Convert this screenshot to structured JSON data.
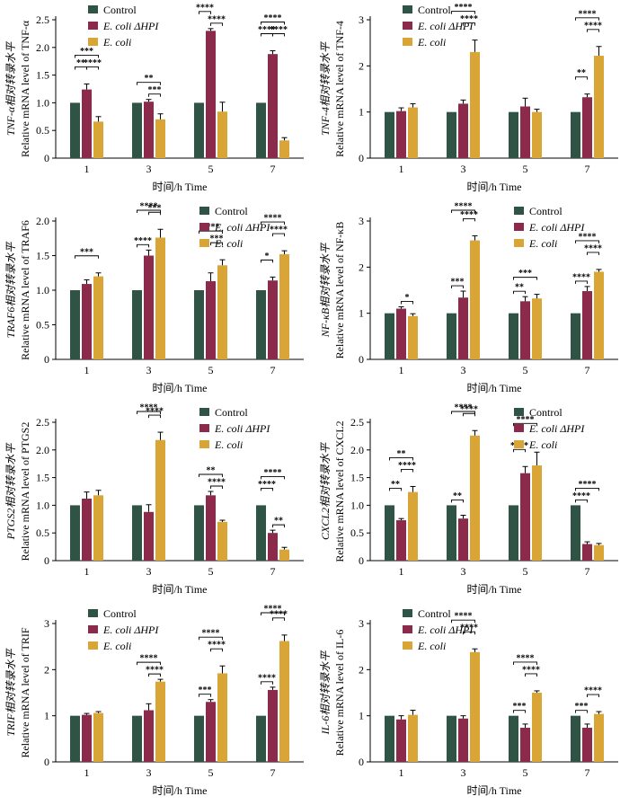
{
  "colors": {
    "control": "#2f5446",
    "ehpi": "#8b2a4b",
    "ecoli": "#d9a537"
  },
  "legend": {
    "control": "Control",
    "ehpi": "E. coli ΔHPI",
    "ecoli": "E. coli"
  },
  "xlabel": "时间/h Time",
  "charts": [
    {
      "type": "bar",
      "ylabel_cn": "TNF-α相对转录水平",
      "ylabel_en": "Relative mRNA level of TNF-α",
      "categories": [
        "1",
        "3",
        "5",
        "7"
      ],
      "ylim": [
        0,
        2.5
      ],
      "yticks": [
        "0",
        "0.5",
        "1.0",
        "1.5",
        "2.0",
        "2.5"
      ],
      "series": [
        {
          "name": "Control",
          "values": [
            1.0,
            1.0,
            1.0,
            1.0
          ],
          "errors": [
            0,
            0,
            0,
            0
          ]
        },
        {
          "name": "E. coli ΔHPI",
          "values": [
            1.24,
            1.02,
            2.3,
            1.88
          ],
          "errors": [
            0.1,
            0.04,
            0.04,
            0.06
          ]
        },
        {
          "name": "E. coli",
          "values": [
            0.66,
            0.7,
            0.84,
            0.32
          ],
          "errors": [
            0.09,
            0.1,
            0.17,
            0.05
          ]
        }
      ],
      "significance": [
        {
          "cat": 0,
          "from": 0,
          "to": 2,
          "level": 3,
          "label": "***"
        },
        {
          "cat": 0,
          "from": 0,
          "to": 1,
          "level": 2,
          "label": "**"
        },
        {
          "cat": 0,
          "from": 1,
          "to": 2,
          "level": 2,
          "label": "****"
        },
        {
          "cat": 1,
          "from": 0,
          "to": 2,
          "level": 2,
          "label": "**"
        },
        {
          "cat": 1,
          "from": 1,
          "to": 2,
          "level": 1,
          "label": "***"
        },
        {
          "cat": 2,
          "from": 0,
          "to": 1,
          "level": 2,
          "label": "****"
        },
        {
          "cat": 2,
          "from": 1,
          "to": 2,
          "level": 1,
          "label": "****"
        },
        {
          "cat": 3,
          "from": 0,
          "to": 2,
          "level": 3,
          "label": "****"
        },
        {
          "cat": 3,
          "from": 0,
          "to": 1,
          "level": 2,
          "label": "****"
        },
        {
          "cat": 3,
          "from": 1,
          "to": 2,
          "level": 2,
          "label": "****"
        }
      ]
    },
    {
      "type": "bar",
      "ylabel_cn": "TNF-4相对转录水平",
      "ylabel_en": "Relative mRNA level of TNF-4",
      "categories": [
        "1",
        "3",
        "5",
        "7"
      ],
      "ylim": [
        0,
        3
      ],
      "yticks": [
        "0",
        "1",
        "2",
        "3"
      ],
      "series": [
        {
          "name": "Control",
          "values": [
            1.0,
            1.0,
            1.0,
            1.0
          ],
          "errors": [
            0,
            0,
            0,
            0
          ]
        },
        {
          "name": "E. coli ΔHPI",
          "values": [
            1.02,
            1.18,
            1.12,
            1.32
          ],
          "errors": [
            0.07,
            0.08,
            0.18,
            0.07
          ]
        },
        {
          "name": "E. coli",
          "values": [
            1.1,
            2.3,
            1.0,
            2.22
          ],
          "errors": [
            0.08,
            0.26,
            0.06,
            0.2
          ]
        }
      ],
      "significance": [
        {
          "cat": 1,
          "from": 0,
          "to": 2,
          "level": 3,
          "label": "****"
        },
        {
          "cat": 1,
          "from": 1,
          "to": 2,
          "level": 2,
          "label": "****"
        },
        {
          "cat": 3,
          "from": 0,
          "to": 2,
          "level": 3,
          "label": "****"
        },
        {
          "cat": 3,
          "from": 0,
          "to": 1,
          "level": 2,
          "label": "**"
        },
        {
          "cat": 3,
          "from": 1,
          "to": 2,
          "level": 2,
          "label": "****"
        }
      ]
    },
    {
      "type": "bar",
      "ylabel_cn": "TRAF6相对转录水平",
      "ylabel_en": "Relative mRNA level of TRAF6",
      "categories": [
        "1",
        "3",
        "5",
        "7"
      ],
      "ylim": [
        0,
        2.0
      ],
      "yticks": [
        "0",
        "0.5",
        "1.0",
        "1.5",
        "2.0"
      ],
      "series": [
        {
          "name": "Control",
          "values": [
            1.0,
            1.0,
            1.0,
            1.0
          ],
          "errors": [
            0,
            0,
            0,
            0
          ]
        },
        {
          "name": "E. coli ΔHPI",
          "values": [
            1.09,
            1.5,
            1.13,
            1.14
          ],
          "errors": [
            0.06,
            0.08,
            0.12,
            0.05
          ]
        },
        {
          "name": "E. coli",
          "values": [
            1.2,
            1.76,
            1.36,
            1.52
          ],
          "errors": [
            0.05,
            0.12,
            0.08,
            0.05
          ]
        }
      ],
      "significance": [
        {
          "cat": 0,
          "from": 0,
          "to": 2,
          "level": 2,
          "label": "***"
        },
        {
          "cat": 1,
          "from": 0,
          "to": 2,
          "level": 3,
          "label": "****"
        },
        {
          "cat": 1,
          "from": 1,
          "to": 2,
          "level": 2,
          "label": "***"
        },
        {
          "cat": 1,
          "from": 0,
          "to": 1,
          "level": 1,
          "label": "****"
        },
        {
          "cat": 2,
          "from": 0,
          "to": 2,
          "level": 3,
          "label": "****"
        },
        {
          "cat": 2,
          "from": 1,
          "to": 2,
          "level": 2,
          "label": "***"
        },
        {
          "cat": 3,
          "from": 0,
          "to": 2,
          "level": 3,
          "label": "****"
        },
        {
          "cat": 3,
          "from": 0,
          "to": 1,
          "level": 2,
          "label": "*"
        },
        {
          "cat": 3,
          "from": 1,
          "to": 2,
          "level": 2,
          "label": "****"
        }
      ]
    },
    {
      "type": "bar",
      "ylabel_cn": "NF-κB相对转录水平",
      "ylabel_en": "Relative mRNA level of NF-κB",
      "categories": [
        "1",
        "3",
        "5",
        "7"
      ],
      "ylim": [
        0,
        3
      ],
      "yticks": [
        "0",
        "1",
        "2",
        "3"
      ],
      "series": [
        {
          "name": "Control",
          "values": [
            1.0,
            1.0,
            1.0,
            1.0
          ],
          "errors": [
            0,
            0,
            0,
            0
          ]
        },
        {
          "name": "E. coli ΔHPI",
          "values": [
            1.1,
            1.34,
            1.26,
            1.48
          ],
          "errors": [
            0.04,
            0.14,
            0.1,
            0.1
          ]
        },
        {
          "name": "E. coli",
          "values": [
            0.94,
            2.58,
            1.32,
            1.9
          ],
          "errors": [
            0.05,
            0.1,
            0.09,
            0.05
          ]
        }
      ],
      "significance": [
        {
          "cat": 0,
          "from": 1,
          "to": 2,
          "level": 1,
          "label": "*"
        },
        {
          "cat": 1,
          "from": 0,
          "to": 2,
          "level": 3,
          "label": "****"
        },
        {
          "cat": 1,
          "from": 1,
          "to": 2,
          "level": 2,
          "label": "****"
        },
        {
          "cat": 1,
          "from": 0,
          "to": 1,
          "level": 1,
          "label": "***"
        },
        {
          "cat": 2,
          "from": 0,
          "to": 2,
          "level": 2,
          "label": "***"
        },
        {
          "cat": 2,
          "from": 0,
          "to": 1,
          "level": 1,
          "label": "**"
        },
        {
          "cat": 3,
          "from": 0,
          "to": 2,
          "level": 3,
          "label": "****"
        },
        {
          "cat": 3,
          "from": 1,
          "to": 2,
          "level": 2,
          "label": "****"
        },
        {
          "cat": 3,
          "from": 0,
          "to": 1,
          "level": 1,
          "label": "****"
        }
      ]
    },
    {
      "type": "bar",
      "ylabel_cn": "PTGS2相对转录水平",
      "ylabel_en": "Relative mRNA level of PTGS2",
      "categories": [
        "1",
        "3",
        "5",
        "7"
      ],
      "ylim": [
        0,
        2.5
      ],
      "yticks": [
        "0",
        "0.5",
        "1.0",
        "1.5",
        "2.0",
        "2.5"
      ],
      "series": [
        {
          "name": "Control",
          "values": [
            1.0,
            1.0,
            1.0,
            1.0
          ],
          "errors": [
            0,
            0,
            0,
            0
          ]
        },
        {
          "name": "E. coli ΔHPI",
          "values": [
            1.12,
            0.88,
            1.18,
            0.5
          ],
          "errors": [
            0.12,
            0.13,
            0.07,
            0.05
          ]
        },
        {
          "name": "E. coli",
          "values": [
            1.18,
            2.18,
            0.7,
            0.2
          ],
          "errors": [
            0.09,
            0.14,
            0.03,
            0.04
          ]
        }
      ],
      "significance": [
        {
          "cat": 1,
          "from": 0,
          "to": 2,
          "level": 3,
          "label": "****"
        },
        {
          "cat": 1,
          "from": 1,
          "to": 2,
          "level": 2,
          "label": "****"
        },
        {
          "cat": 2,
          "from": 0,
          "to": 2,
          "level": 2,
          "label": "**"
        },
        {
          "cat": 2,
          "from": 1,
          "to": 2,
          "level": 1,
          "label": "****"
        },
        {
          "cat": 3,
          "from": 0,
          "to": 2,
          "level": 3,
          "label": "****"
        },
        {
          "cat": 3,
          "from": 0,
          "to": 1,
          "level": 2,
          "label": "****"
        },
        {
          "cat": 3,
          "from": 1,
          "to": 2,
          "level": 1,
          "label": "**"
        }
      ]
    },
    {
      "type": "bar",
      "ylabel_cn": "CXCL2相对转录水平",
      "ylabel_en": "Relative mRNA level of CXCL2",
      "categories": [
        "1",
        "3",
        "5",
        "7"
      ],
      "ylim": [
        0,
        2.5
      ],
      "yticks": [
        "0",
        "0.5",
        "1.0",
        "1.5",
        "2.0",
        "2.5"
      ],
      "series": [
        {
          "name": "Control",
          "values": [
            1.0,
            1.0,
            1.0,
            1.0
          ],
          "errors": [
            0,
            0,
            0,
            0
          ]
        },
        {
          "name": "E. coli ΔHPI",
          "values": [
            0.73,
            0.76,
            1.58,
            0.3
          ],
          "errors": [
            0.03,
            0.06,
            0.12,
            0.04
          ]
        },
        {
          "name": "E. coli",
          "values": [
            1.24,
            2.26,
            1.72,
            0.28
          ],
          "errors": [
            0.1,
            0.09,
            0.24,
            0.03
          ]
        }
      ],
      "significance": [
        {
          "cat": 0,
          "from": 0,
          "to": 2,
          "level": 3,
          "label": "**"
        },
        {
          "cat": 0,
          "from": 0,
          "to": 1,
          "level": 2,
          "label": "**"
        },
        {
          "cat": 0,
          "from": 1,
          "to": 2,
          "level": 2,
          "label": "****"
        },
        {
          "cat": 1,
          "from": 0,
          "to": 2,
          "level": 3,
          "label": "****"
        },
        {
          "cat": 1,
          "from": 1,
          "to": 2,
          "level": 2,
          "label": "****"
        },
        {
          "cat": 1,
          "from": 0,
          "to": 1,
          "level": 1,
          "label": "**"
        },
        {
          "cat": 2,
          "from": 0,
          "to": 2,
          "level": 3,
          "label": "****"
        },
        {
          "cat": 2,
          "from": 0,
          "to": 1,
          "level": 2,
          "label": "****"
        },
        {
          "cat": 3,
          "from": 0,
          "to": 2,
          "level": 2,
          "label": "****"
        },
        {
          "cat": 3,
          "from": 0,
          "to": 1,
          "level": 1,
          "label": "****"
        }
      ]
    },
    {
      "type": "bar",
      "ylabel_cn": "TRIF相对转录水平",
      "ylabel_en": "Relative mRNA level of TRIF",
      "categories": [
        "1",
        "3",
        "5",
        "7"
      ],
      "ylim": [
        0,
        3
      ],
      "yticks": [
        "0",
        "1",
        "2",
        "3"
      ],
      "series": [
        {
          "name": "Control",
          "values": [
            1.0,
            1.0,
            1.0,
            1.0
          ],
          "errors": [
            0,
            0,
            0,
            0
          ]
        },
        {
          "name": "E. coli ΔHPI",
          "values": [
            1.02,
            1.12,
            1.3,
            1.56
          ],
          "errors": [
            0.03,
            0.14,
            0.05,
            0.06
          ]
        },
        {
          "name": "E. coli",
          "values": [
            1.06,
            1.74,
            1.92,
            2.62
          ],
          "errors": [
            0.03,
            0.05,
            0.16,
            0.13
          ]
        }
      ],
      "significance": [
        {
          "cat": 1,
          "from": 0,
          "to": 2,
          "level": 2,
          "label": "****"
        },
        {
          "cat": 1,
          "from": 1,
          "to": 2,
          "level": 1,
          "label": "****"
        },
        {
          "cat": 2,
          "from": 0,
          "to": 2,
          "level": 3,
          "label": "****"
        },
        {
          "cat": 2,
          "from": 1,
          "to": 2,
          "level": 2,
          "label": "****"
        },
        {
          "cat": 2,
          "from": 0,
          "to": 1,
          "level": 1,
          "label": "***"
        },
        {
          "cat": 3,
          "from": 0,
          "to": 2,
          "level": 3,
          "label": "****"
        },
        {
          "cat": 3,
          "from": 1,
          "to": 2,
          "level": 2,
          "label": "****"
        },
        {
          "cat": 3,
          "from": 0,
          "to": 1,
          "level": 1,
          "label": "****"
        }
      ]
    },
    {
      "type": "bar",
      "ylabel_cn": "IL-6相对转录水平",
      "ylabel_en": "Relative mRNA level of IL-6",
      "categories": [
        "1",
        "3",
        "5",
        "7"
      ],
      "ylim": [
        0,
        3
      ],
      "yticks": [
        "0",
        "1",
        "2",
        "3"
      ],
      "series": [
        {
          "name": "Control",
          "values": [
            1.0,
            1.0,
            1.0,
            1.0
          ],
          "errors": [
            0,
            0,
            0,
            0
          ]
        },
        {
          "name": "E. coli ΔHPI",
          "values": [
            0.92,
            0.94,
            0.74,
            0.74
          ],
          "errors": [
            0.08,
            0.06,
            0.08,
            0.08
          ]
        },
        {
          "name": "E. coli",
          "values": [
            1.02,
            2.38,
            1.5,
            1.04
          ],
          "errors": [
            0.1,
            0.07,
            0.04,
            0.05
          ]
        }
      ],
      "significance": [
        {
          "cat": 1,
          "from": 0,
          "to": 2,
          "level": 3,
          "label": "****"
        },
        {
          "cat": 1,
          "from": 1,
          "to": 2,
          "level": 2,
          "label": "****"
        },
        {
          "cat": 2,
          "from": 0,
          "to": 2,
          "level": 3,
          "label": "****"
        },
        {
          "cat": 2,
          "from": 1,
          "to": 2,
          "level": 2,
          "label": "****"
        },
        {
          "cat": 2,
          "from": 0,
          "to": 1,
          "level": 1,
          "label": "***"
        },
        {
          "cat": 3,
          "from": 0,
          "to": 1,
          "level": 1,
          "label": "***"
        },
        {
          "cat": 3,
          "from": 1,
          "to": 2,
          "level": 2,
          "label": "****"
        }
      ]
    }
  ]
}
